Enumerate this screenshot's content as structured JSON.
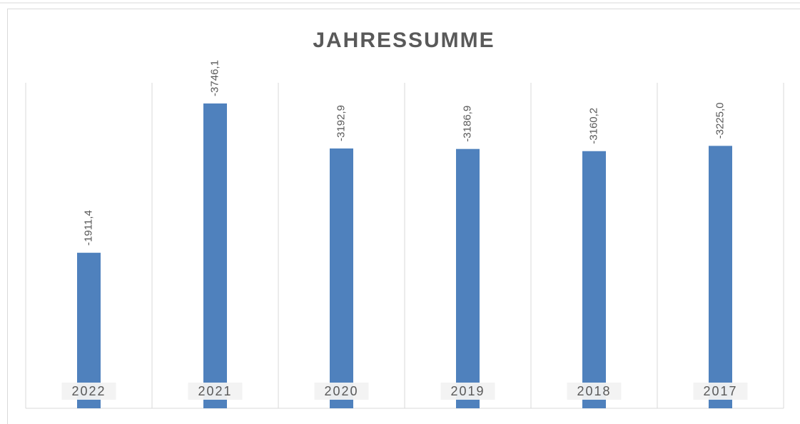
{
  "chart_data": {
    "type": "bar",
    "title": "JAHRESSUMME",
    "categories": [
      "2022",
      "2021",
      "2020",
      "2019",
      "2018",
      "2017"
    ],
    "values": [
      -1911.4,
      -3746.1,
      -3192.9,
      -3186.9,
      -3160.2,
      -3225.0
    ],
    "value_labels": [
      "-1911,4",
      "-3746,1",
      "-3192,9",
      "-3186,9",
      "-3160,2",
      "-3225,0"
    ],
    "color": "#4f81bd",
    "ylim": [
      0,
      -4000
    ],
    "grid": true
  }
}
